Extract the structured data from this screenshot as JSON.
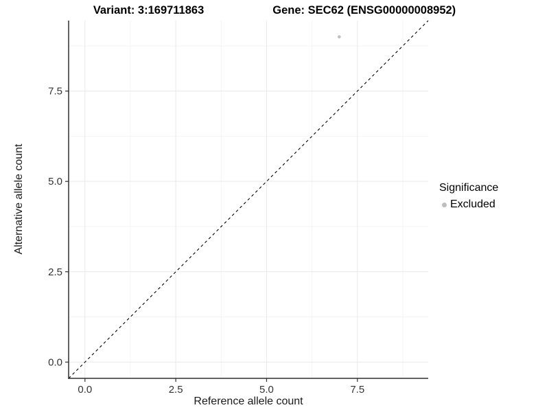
{
  "chart_data": {
    "type": "scatter",
    "title_left": "Variant: 3:169711863",
    "title_right": "Gene: SEC62 (ENSG00000008952)",
    "xlabel": "Reference allele count",
    "ylabel": "Alternative allele count",
    "xlim": [
      -0.45,
      9.45
    ],
    "ylim": [
      -0.45,
      9.45
    ],
    "x_ticks": {
      "values": [
        0,
        2.5,
        5,
        7.5
      ],
      "labels": [
        "0.0",
        "2.5",
        "5.0",
        "7.5"
      ]
    },
    "y_ticks": {
      "values": [
        0,
        2.5,
        5,
        7.5
      ],
      "labels": [
        "0.0",
        "2.5",
        "5.0",
        "7.5"
      ]
    },
    "x_minor_ticks": [
      1.25,
      3.75,
      6.25,
      8.75
    ],
    "y_minor_ticks": [
      1.25,
      3.75,
      6.25,
      8.75
    ],
    "grid": "major and minor gridlines, white background, axis lines left and bottom only",
    "series": [
      {
        "name": "Excluded",
        "color": "#bebebe",
        "points": [
          {
            "x": 7,
            "y": 9
          }
        ]
      }
    ],
    "reference_line": {
      "kind": "identity y = x",
      "style": "dashed",
      "color": "#000000",
      "x1": -0.45,
      "y1": -0.45,
      "x2": 9.45,
      "y2": 9.45
    },
    "legend": {
      "title": "Significance",
      "position": "right",
      "entries": [
        {
          "label": "Excluded",
          "color": "#bebebe",
          "marker": "circle"
        }
      ]
    },
    "colors": {
      "point": "#bebebe",
      "grid_major": "#e9e9e9",
      "grid_minor": "#f4f4f4",
      "axis_line": "#2f2f2f",
      "tick_mark": "#2f2f2f",
      "tick_label": "#333333",
      "reference_line": "#000000"
    }
  }
}
